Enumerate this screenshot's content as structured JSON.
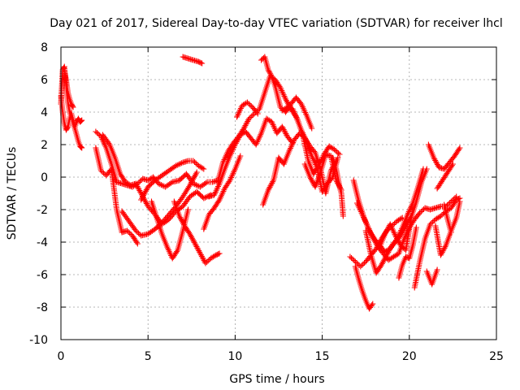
{
  "chart_data": {
    "type": "scatter",
    "title": "Day 021 of 2017, Sidereal Day-to-day VTEC variation (SDTVAR) for receiver lhcl",
    "xlabel": "GPS time / hours",
    "ylabel": "SDTVAR / TECUs",
    "xlim": [
      0,
      25
    ],
    "ylim": [
      -10,
      8
    ],
    "x_ticks": [
      "0",
      "5",
      "10",
      "15",
      "20",
      "25"
    ],
    "y_ticks": [
      "-10",
      "-8",
      "-6",
      "-4",
      "-2",
      "0",
      "2",
      "4",
      "6",
      "8"
    ],
    "grid": true,
    "marker": "+",
    "series_color": "#ff0000",
    "tracks": [
      {
        "x": [
          0.0,
          0.1,
          0.2,
          0.3,
          0.4,
          0.5,
          0.6,
          0.7,
          0.8,
          0.9,
          1.0,
          1.1,
          1.2
        ],
        "y": [
          4.5,
          6.6,
          6.8,
          5.5,
          4.6,
          4.0,
          3.7,
          3.3,
          3.0,
          2.6,
          2.2,
          1.9,
          1.8
        ]
      },
      {
        "x": [
          0.0,
          0.1,
          0.2,
          0.3,
          0.4,
          0.5,
          0.6,
          0.7,
          0.8,
          0.9,
          1.0,
          1.1,
          1.2
        ],
        "y": [
          5.0,
          4.0,
          3.3,
          2.9,
          3.1,
          3.6,
          3.9,
          3.5,
          3.1,
          3.4,
          3.6,
          3.4,
          3.5
        ]
      },
      {
        "x": [
          0.2,
          0.3,
          0.4,
          0.5,
          0.6,
          0.7
        ],
        "y": [
          6.5,
          6.0,
          5.2,
          4.8,
          4.5,
          4.3
        ]
      },
      {
        "x": [
          2.0,
          2.3,
          2.6,
          2.9,
          3.2,
          3.5,
          3.8,
          4.1,
          4.4,
          4.7,
          5.0,
          5.3,
          5.6,
          6.0,
          6.4,
          6.8,
          7.2,
          7.6,
          8.0,
          8.4,
          8.7,
          9.0
        ],
        "y": [
          2.8,
          2.5,
          1.8,
          0.8,
          -0.3,
          -0.4,
          -0.5,
          -0.6,
          -0.4,
          -0.1,
          -0.2,
          0.0,
          -0.4,
          -0.6,
          -0.3,
          -0.2,
          0.2,
          -0.4,
          -0.6,
          -0.3,
          -0.3,
          -0.2
        ]
      },
      {
        "x": [
          2.0,
          2.3,
          2.6,
          2.9,
          3.2,
          3.5,
          3.8,
          4.1,
          4.4
        ],
        "y": [
          1.8,
          0.4,
          0.1,
          0.5,
          -2.0,
          -3.4,
          -3.3,
          -3.6,
          -4.1
        ]
      },
      {
        "x": [
          2.4,
          2.8,
          3.1,
          3.4,
          3.7,
          4.0,
          4.3,
          4.6,
          5.0,
          5.4,
          5.8,
          6.2,
          6.6,
          7.0,
          7.4,
          7.8,
          8.2,
          8.6
        ],
        "y": [
          2.6,
          2.0,
          1.2,
          0.2,
          -0.3,
          -0.5,
          -0.4,
          -1.0,
          -1.8,
          -2.3,
          -2.9,
          -2.6,
          -2.1,
          -1.8,
          -1.2,
          -0.9,
          -1.3,
          -1.1
        ]
      },
      {
        "x": [
          3.5,
          3.9,
          4.3,
          4.6,
          5.0,
          5.4,
          5.8,
          6.2,
          6.6,
          7.0,
          7.4,
          7.8
        ],
        "y": [
          -2.1,
          -2.7,
          -3.3,
          -3.6,
          -3.5,
          -3.2,
          -2.8,
          -2.3,
          -1.8,
          -1.2,
          -0.5,
          0.3
        ]
      },
      {
        "x": [
          4.6,
          5.0,
          5.4,
          5.8,
          6.2,
          6.6,
          7.0,
          7.3,
          7.6,
          7.9,
          8.2
        ],
        "y": [
          -1.4,
          -0.6,
          -0.2,
          0.1,
          0.4,
          0.7,
          0.9,
          1.0,
          1.0,
          0.7,
          0.5
        ]
      },
      {
        "x": [
          5.2,
          5.5,
          5.8,
          6.1,
          6.4,
          6.7,
          7.0,
          7.3
        ],
        "y": [
          -1.5,
          -2.5,
          -3.5,
          -4.3,
          -5.0,
          -4.5,
          -3.3,
          -2.0
        ]
      },
      {
        "x": [
          6.5,
          6.8,
          7.1,
          7.4,
          7.7,
          8.0,
          8.3,
          8.6,
          8.9,
          9.1
        ],
        "y": [
          -1.5,
          -2.4,
          -3.0,
          -3.5,
          -4.1,
          -4.7,
          -5.3,
          -5.0,
          -4.8,
          -4.7
        ]
      },
      {
        "x": [
          7.0,
          7.3,
          7.6,
          7.9,
          8.1
        ],
        "y": [
          7.4,
          7.3,
          7.2,
          7.1,
          7.0
        ]
      },
      {
        "x": [
          8.2,
          8.5,
          8.8,
          9.1,
          9.4,
          9.7,
          10.0,
          10.3
        ],
        "y": [
          -3.2,
          -2.3,
          -1.9,
          -1.4,
          -0.7,
          -0.2,
          0.5,
          1.3
        ]
      },
      {
        "x": [
          8.5,
          8.8,
          9.1,
          9.4,
          9.7,
          10.0,
          10.3,
          10.6,
          10.9,
          11.2,
          11.5,
          11.8,
          12.1,
          12.4,
          12.7,
          13.0,
          13.3
        ],
        "y": [
          -1.2,
          -1.1,
          -0.4,
          0.5,
          1.3,
          2.0,
          2.6,
          2.8,
          2.4,
          2.0,
          2.7,
          3.6,
          3.4,
          2.7,
          3.1,
          2.5,
          2.1
        ]
      },
      {
        "x": [
          9.0,
          9.3,
          9.6,
          9.9,
          10.2,
          10.5,
          10.8,
          11.1,
          11.4,
          11.7,
          12.0,
          12.3,
          12.6,
          12.9,
          13.2,
          13.5,
          13.8,
          14.1,
          14.4,
          14.7,
          15.0,
          15.3,
          15.6,
          15.9
        ],
        "y": [
          -0.3,
          0.9,
          1.6,
          2.1,
          2.5,
          3.0,
          3.6,
          3.9,
          4.2,
          5.2,
          6.2,
          6.0,
          5.5,
          4.8,
          4.2,
          3.7,
          2.9,
          2.2,
          1.3,
          0.6,
          -0.9,
          -0.4,
          0.0,
          1.2
        ]
      },
      {
        "x": [
          10.1,
          10.4,
          10.7,
          11.0,
          11.3
        ],
        "y": [
          3.7,
          4.4,
          4.6,
          4.3,
          3.9
        ]
      },
      {
        "x": [
          11.5,
          11.7,
          11.9,
          12.1,
          12.3,
          12.6,
          12.9,
          13.2,
          13.5,
          13.8,
          14.1,
          14.4
        ],
        "y": [
          7.2,
          7.4,
          6.6,
          6.2,
          5.6,
          4.3,
          4.0,
          4.5,
          4.9,
          4.5,
          3.8,
          3.0
        ]
      },
      {
        "x": [
          11.6,
          11.9,
          12.2,
          12.5,
          12.8,
          13.1,
          13.4,
          13.7,
          14.0,
          14.3,
          14.6,
          14.9,
          15.2,
          15.5,
          15.8
        ],
        "y": [
          -1.7,
          -0.8,
          -0.2,
          1.2,
          0.8,
          1.6,
          2.3,
          2.7,
          2.4,
          1.9,
          1.5,
          0.5,
          -1.0,
          0.4,
          1.0
        ]
      },
      {
        "x": [
          12.7,
          13.0,
          13.3,
          13.6,
          13.9,
          14.2,
          14.5,
          14.8,
          15.1,
          15.4,
          15.7,
          16.0
        ],
        "y": [
          4.1,
          4.3,
          4.2,
          3.5,
          2.5,
          1.0,
          0.2,
          0.7,
          1.4,
          1.9,
          1.7,
          1.4
        ]
      },
      {
        "x": [
          14.0,
          14.3,
          14.6,
          14.9,
          15.2,
          15.5,
          15.8,
          16.1
        ],
        "y": [
          0.8,
          0.0,
          -0.6,
          0.3,
          1.4,
          1.3,
          -0.2,
          -0.8
        ]
      },
      {
        "x": [
          15.6,
          15.8,
          16.0,
          16.1,
          16.2
        ],
        "y": [
          1.2,
          0.5,
          -0.6,
          -1.0,
          -2.4
        ]
      },
      {
        "x": [
          16.6,
          16.9,
          17.2,
          17.5,
          17.8,
          18.1,
          18.4,
          18.7,
          19.0,
          19.3,
          19.6
        ],
        "y": [
          -4.9,
          -5.2,
          -5.5,
          -5.2,
          -4.8,
          -4.4,
          -3.8,
          -3.3,
          -3.0,
          -2.7,
          -2.5
        ]
      },
      {
        "x": [
          16.9,
          17.1,
          17.3,
          17.5,
          17.7,
          17.9
        ],
        "y": [
          -5.5,
          -6.3,
          -7.0,
          -7.6,
          -8.1,
          -7.8
        ]
      },
      {
        "x": [
          16.8,
          17.1,
          17.4,
          17.7,
          18.0,
          18.3,
          18.6,
          18.9,
          19.2,
          19.5,
          19.8,
          20.1
        ],
        "y": [
          -0.2,
          -1.5,
          -2.5,
          -3.3,
          -3.8,
          -4.2,
          -4.6,
          -4.4,
          -4.0,
          -3.6,
          -3.0,
          -2.4
        ]
      },
      {
        "x": [
          17.0,
          17.3,
          17.6,
          17.9,
          18.2,
          18.5,
          18.8,
          19.1,
          19.4,
          19.7,
          20.0,
          20.3,
          20.6,
          20.9,
          21.2,
          21.5,
          21.8,
          22.1,
          22.4,
          22.7
        ],
        "y": [
          -1.6,
          -2.3,
          -3.0,
          -3.7,
          -4.3,
          -4.7,
          -5.1,
          -4.9,
          -4.7,
          -3.8,
          -3.1,
          -2.6,
          -2.2,
          -1.9,
          -2.0,
          -1.9,
          -1.8,
          -1.8,
          -1.5,
          -1.2
        ]
      },
      {
        "x": [
          17.5,
          17.8,
          18.1,
          18.4,
          18.7,
          19.0,
          19.3,
          19.6,
          19.9,
          20.2,
          20.5,
          20.8
        ],
        "y": [
          -3.3,
          -4.8,
          -5.9,
          -5.4,
          -4.8,
          -4.2,
          -3.8,
          -3.1,
          -2.3,
          -1.6,
          -0.6,
          0.5
        ]
      },
      {
        "x": [
          18.3,
          18.6,
          18.9,
          19.2,
          19.5,
          19.8,
          20.1,
          20.4,
          20.7,
          21.0
        ],
        "y": [
          -4.3,
          -3.5,
          -2.9,
          -3.6,
          -4.2,
          -4.5,
          -2.5,
          -1.5,
          -0.3,
          0.5
        ]
      },
      {
        "x": [
          19.4,
          19.6,
          19.8,
          20.0,
          20.2,
          20.4
        ],
        "y": [
          -6.2,
          -5.4,
          -4.9,
          -5.0,
          -4.2,
          -3.1
        ]
      },
      {
        "x": [
          20.3,
          20.6,
          20.9,
          21.2,
          21.5,
          21.8,
          22.1,
          22.4,
          22.7,
          22.9
        ],
        "y": [
          -6.8,
          -5.2,
          -3.8,
          -2.9,
          -2.6,
          -2.4,
          -2.1,
          -1.9,
          -1.4,
          -1.3
        ]
      },
      {
        "x": [
          21.0,
          21.3,
          21.6
        ],
        "y": [
          -5.8,
          -6.6,
          -5.7
        ]
      },
      {
        "x": [
          21.1,
          21.4,
          21.7,
          22.0,
          22.3,
          22.6,
          22.9
        ],
        "y": [
          2.0,
          1.2,
          0.6,
          0.5,
          0.9,
          1.3,
          1.8
        ]
      },
      {
        "x": [
          21.5,
          21.8,
          22.1,
          22.4,
          22.7,
          22.9
        ],
        "y": [
          -3.0,
          -4.8,
          -4.2,
          -3.3,
          -2.5,
          -1.5
        ]
      },
      {
        "x": [
          21.6,
          21.9,
          22.2,
          22.5
        ],
        "y": [
          -0.7,
          -0.2,
          0.3,
          0.8
        ]
      },
      {
        "x": [
          22.0,
          22.2,
          22.4
        ],
        "y": [
          -1.7,
          -2.6,
          -3.4
        ]
      }
    ]
  }
}
